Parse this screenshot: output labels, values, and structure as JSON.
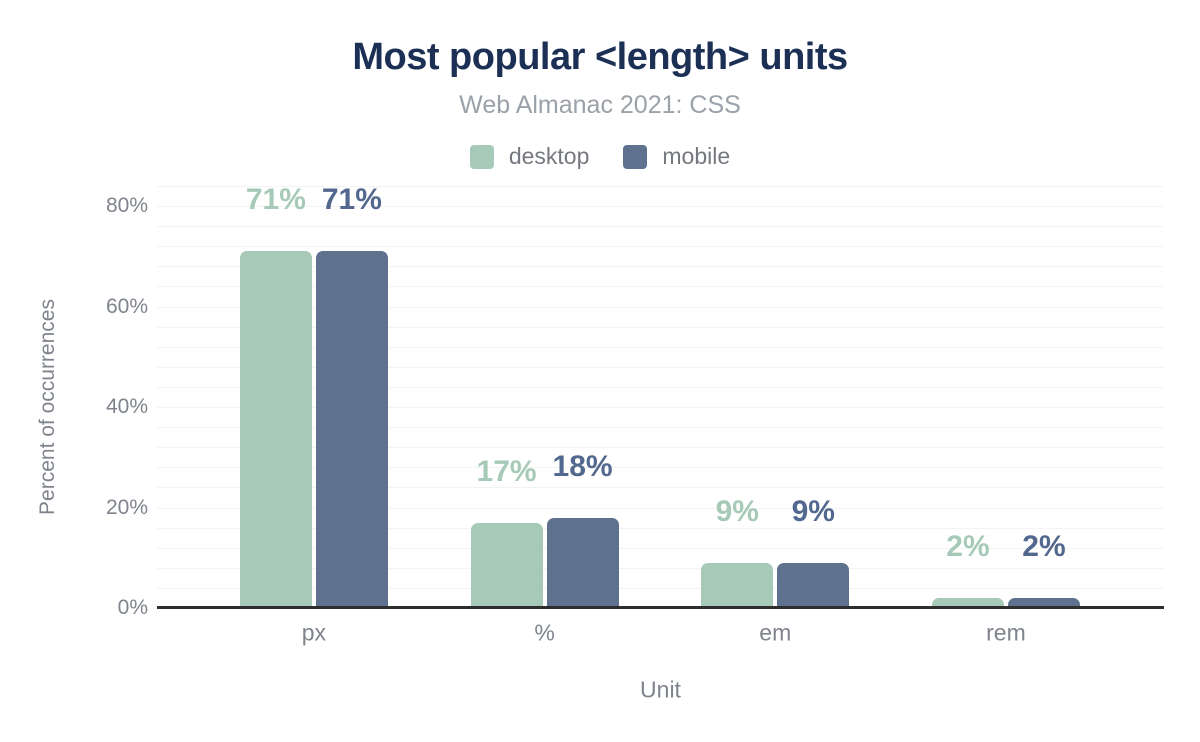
{
  "chart_data": {
    "type": "bar",
    "title": "Most popular <length> units",
    "subtitle": "Web Almanac 2021: CSS",
    "categories": [
      "px",
      "%",
      "em",
      "rem"
    ],
    "series": [
      {
        "name": "desktop",
        "color": "#a7cab8",
        "label_color": "#a7cab8",
        "values": [
          71,
          17,
          9,
          2
        ]
      },
      {
        "name": "mobile",
        "color": "#5e718e",
        "label_color": "#52688e",
        "values": [
          71,
          18,
          9,
          2
        ]
      }
    ],
    "value_label_suffix": "%",
    "xlabel": "Unit",
    "ylabel": "Percent of occurrences",
    "y_ticks": [
      {
        "value": 0,
        "label": "0%"
      },
      {
        "value": 20,
        "label": "20%"
      },
      {
        "value": 40,
        "label": "40%"
      },
      {
        "value": 60,
        "label": "60%"
      },
      {
        "value": 80,
        "label": "80%"
      }
    ],
    "ylim": [
      0,
      84
    ],
    "gridlines": {
      "step": 4,
      "max": 84,
      "visible": true
    },
    "legend_position": "top"
  },
  "colors": {
    "background": "#ffffff",
    "title": "#1c2f54",
    "subtitle": "#9ba1a8",
    "axis_text": "#7f848c",
    "legend_text": "#75797f",
    "gridline": "#f3f3f3",
    "axis_line": "#2e2e2e"
  }
}
